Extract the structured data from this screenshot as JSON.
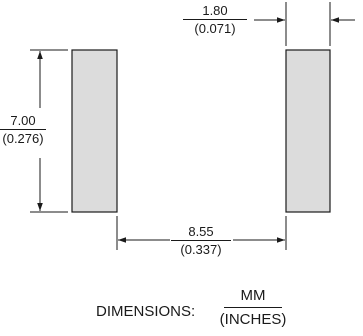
{
  "pad_width": {
    "mm": "1.80",
    "in": "(0.071)"
  },
  "pad_height": {
    "mm": "7.00",
    "in": "(0.276)"
  },
  "pad_spacing": {
    "mm": "8.55",
    "in": "(0.337)"
  },
  "legend": {
    "label": "DIMENSIONS:",
    "unit_top": "MM",
    "unit_bottom": "(INCHES)"
  },
  "colors": {
    "pad_fill": "#dcdcdc",
    "line": "#1a1a1a"
  }
}
